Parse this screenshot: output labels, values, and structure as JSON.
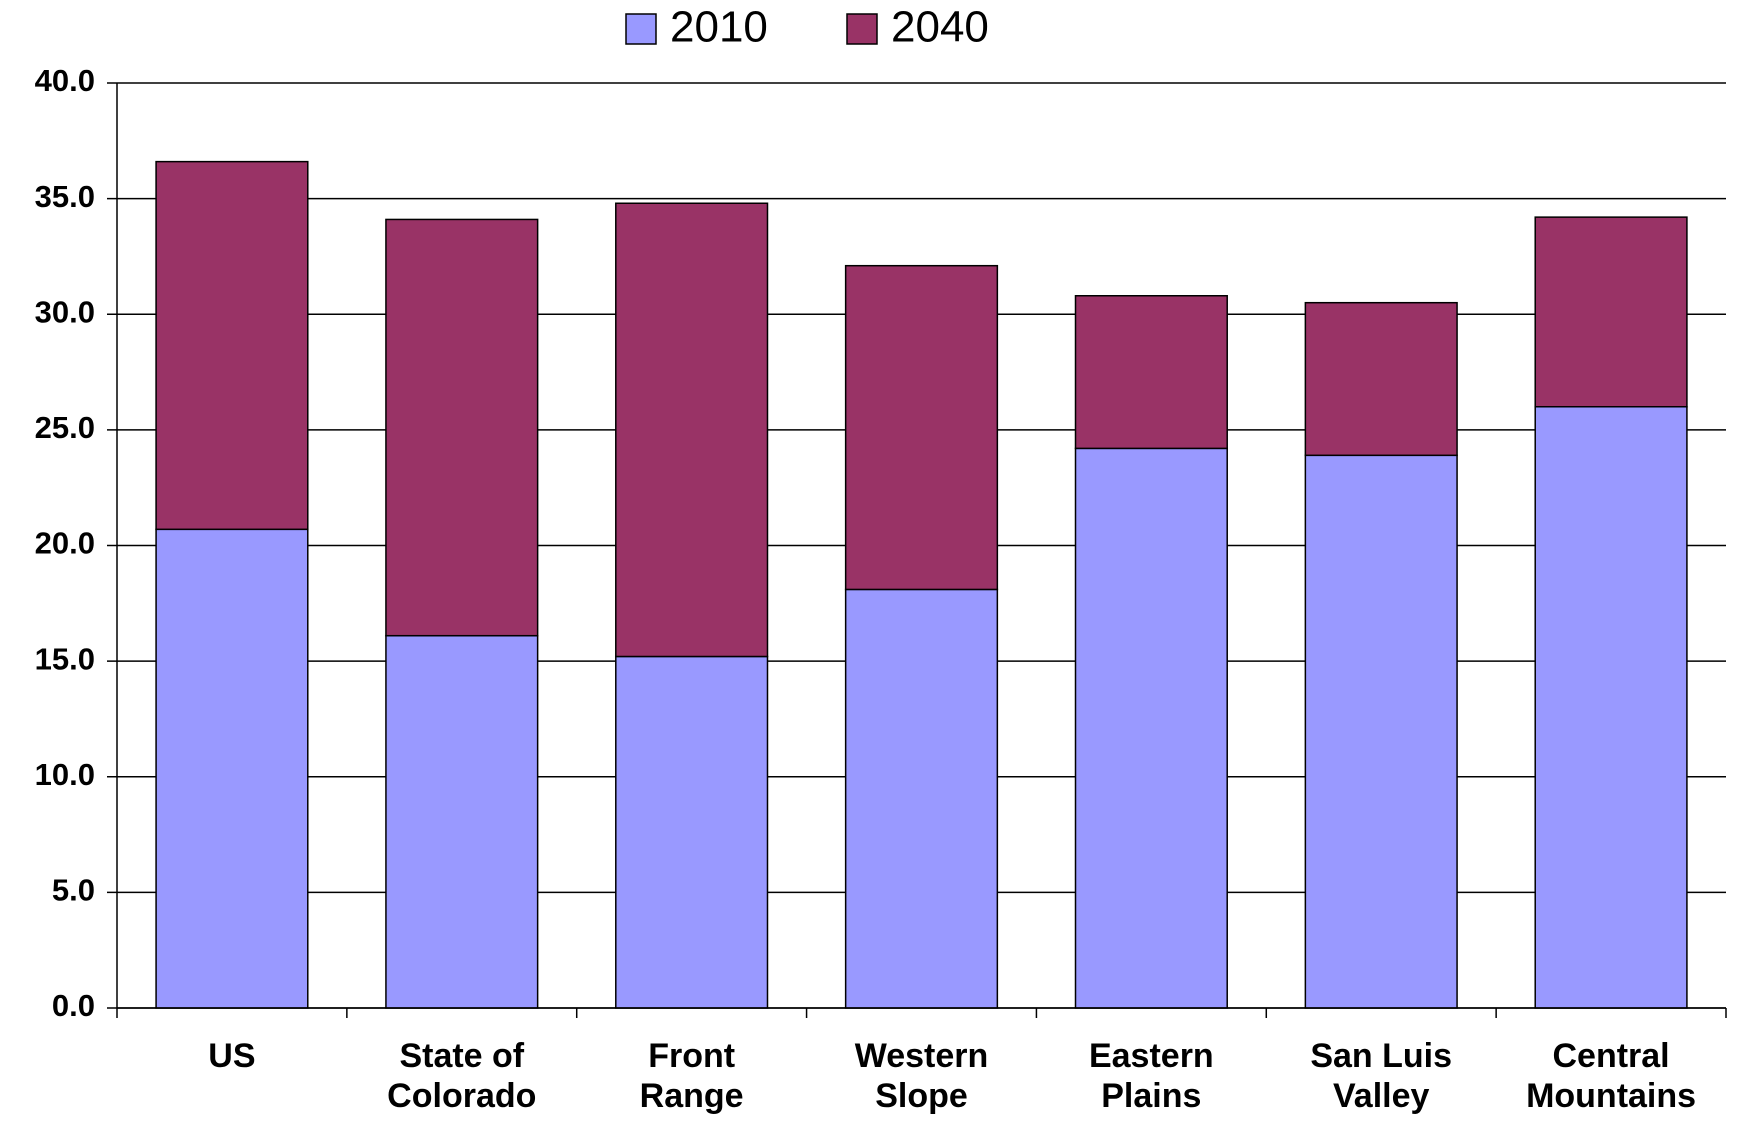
{
  "chart_data": {
    "type": "stacked_bar",
    "categories": [
      "US",
      "State of Colorado",
      "Front Range",
      "Western Slope",
      "Eastern Plains",
      "San Luis Valley",
      "Central Mountains"
    ],
    "series": [
      {
        "name": "2010",
        "color": "#9999ff",
        "values": [
          20.7,
          16.1,
          15.2,
          18.1,
          24.2,
          23.9,
          26.0
        ]
      },
      {
        "name": "2040",
        "color": "#993366",
        "values": [
          15.9,
          18.0,
          19.6,
          14.0,
          6.6,
          6.6,
          8.2
        ]
      }
    ],
    "ylim": [
      0,
      40
    ],
    "yticks": [
      {
        "value": 0,
        "label": "0.0"
      },
      {
        "value": 5,
        "label": "5.0"
      },
      {
        "value": 10,
        "label": "10.0"
      },
      {
        "value": 15,
        "label": "15.0"
      },
      {
        "value": 20,
        "label": "20.0"
      },
      {
        "value": 25,
        "label": "25.0"
      },
      {
        "value": 30,
        "label": "30.0"
      },
      {
        "value": 35,
        "label": "35.0"
      },
      {
        "value": 40,
        "label": "40.0"
      }
    ],
    "grid": true,
    "legend": "top"
  }
}
